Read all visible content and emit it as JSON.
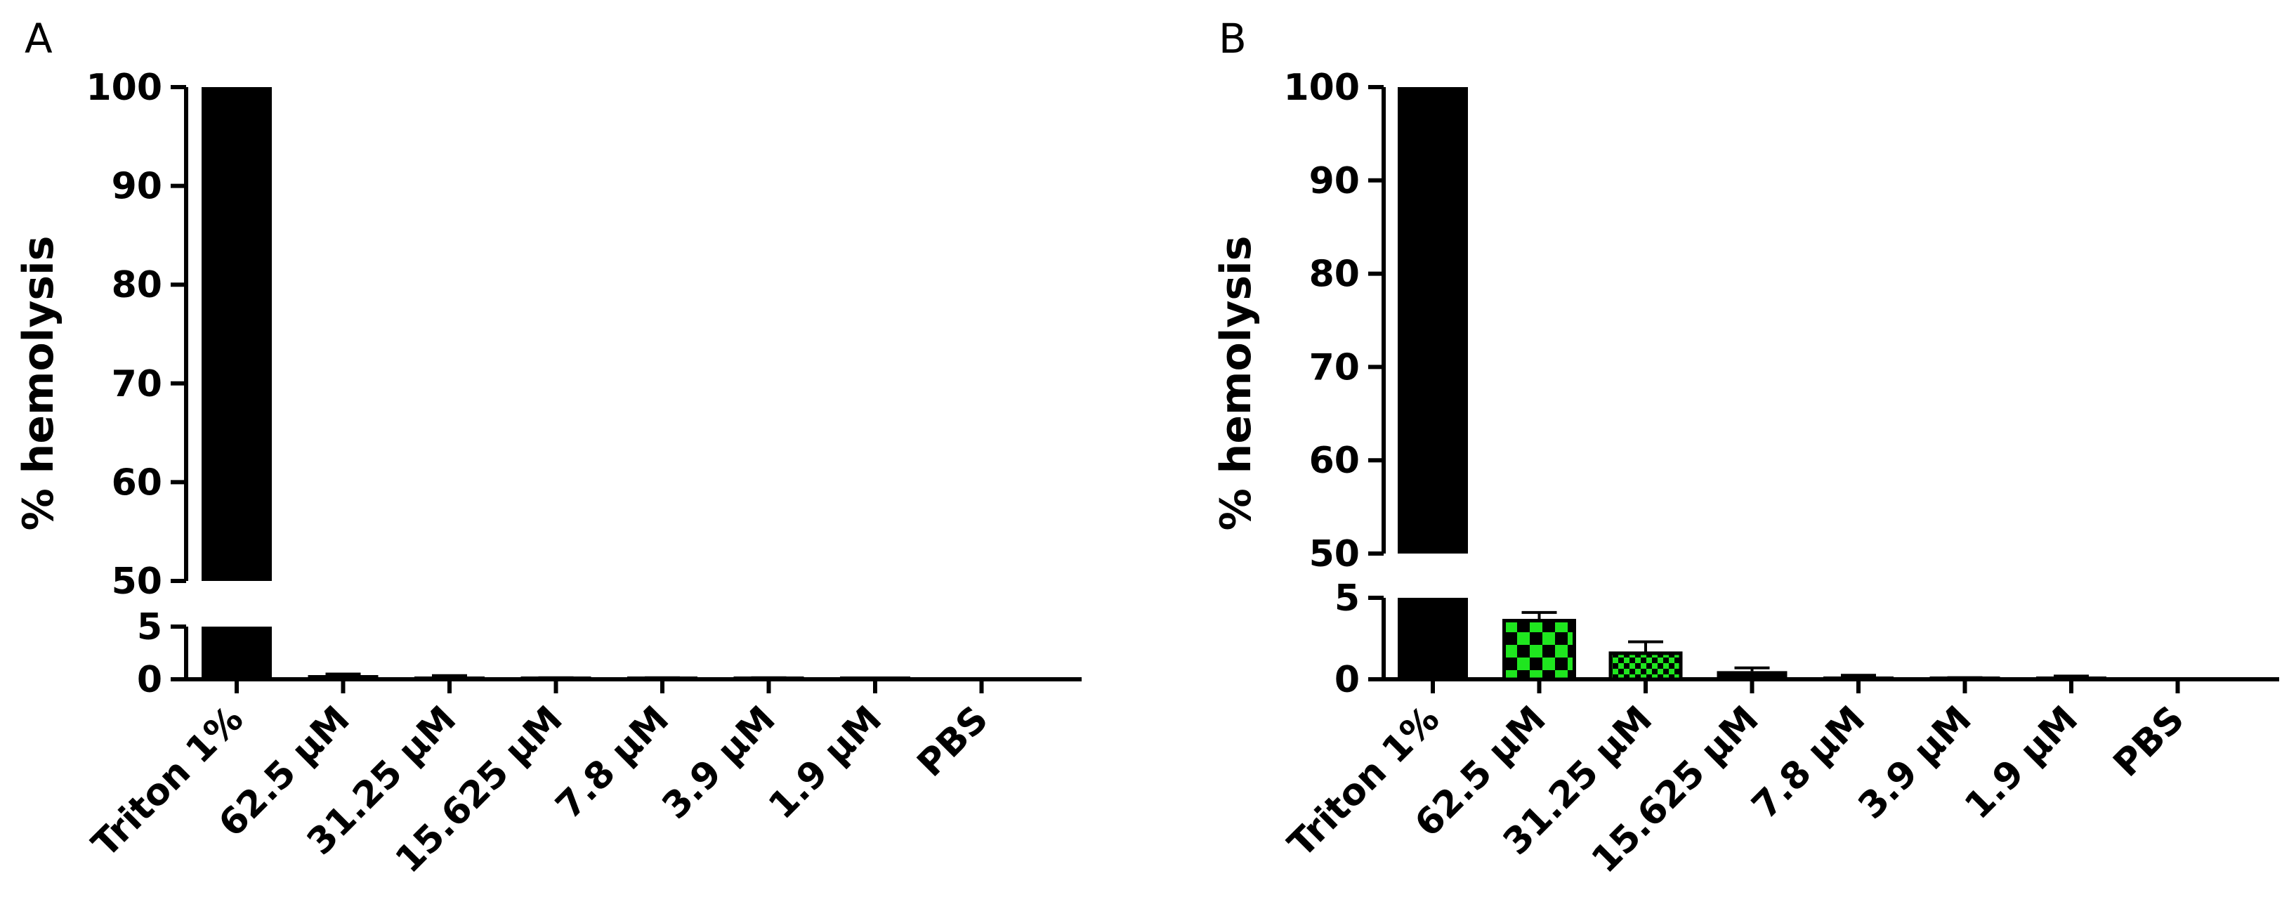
{
  "chart_data": [
    {
      "type": "bar",
      "panel_label": "A",
      "title": "",
      "xlabel": "",
      "ylabel": "% hemolysis",
      "y_axis_break": {
        "lower_range": [
          0,
          5
        ],
        "upper_range": [
          50,
          100
        ]
      },
      "ylim": [
        0,
        100
      ],
      "y_ticks_lower": [
        "0",
        "5"
      ],
      "y_ticks_upper": [
        "50",
        "60",
        "70",
        "80",
        "90",
        "100"
      ],
      "categories": [
        "Triton 1%",
        "62.5 µM",
        "31.25 µM",
        "15.625 µM",
        "7.8 µM",
        "3.9 µM",
        "1.9 µM",
        "PBS"
      ],
      "values": [
        100,
        0.4,
        0.25,
        0.1,
        0.1,
        0.1,
        0.05,
        0
      ],
      "errors": [
        0,
        0.1,
        0.1,
        0.05,
        0.05,
        0.05,
        0.05,
        0
      ],
      "fills": [
        "black",
        "black",
        "black",
        "black",
        "black",
        "black",
        "black",
        "black"
      ],
      "grid": false,
      "legend": "none"
    },
    {
      "type": "bar",
      "panel_label": "B",
      "title": "",
      "xlabel": "",
      "ylabel": "% hemolysis",
      "y_axis_break": {
        "lower_range": [
          0,
          5
        ],
        "upper_range": [
          50,
          100
        ]
      },
      "ylim": [
        0,
        100
      ],
      "y_ticks_lower": [
        "0",
        "5"
      ],
      "y_ticks_upper": [
        "50",
        "60",
        "70",
        "80",
        "90",
        "100"
      ],
      "categories": [
        "Triton 1%",
        "62.5 µM",
        "31.25 µM",
        "15.625 µM",
        "7.8 µM",
        "3.9 µM",
        "1.9 µM",
        "PBS"
      ],
      "values": [
        100,
        3.6,
        1.6,
        0.5,
        0.15,
        0.05,
        0.1,
        0
      ],
      "errors": [
        0,
        0.5,
        0.7,
        0.2,
        0.1,
        0.05,
        0.1,
        0
      ],
      "fills": [
        "black",
        "checker-large",
        "checker-small",
        "black",
        "black",
        "black",
        "black",
        "black"
      ],
      "grid": false,
      "legend": "none"
    }
  ],
  "colors": {
    "bar": "#000000",
    "checker_green": "#1fe61f"
  }
}
